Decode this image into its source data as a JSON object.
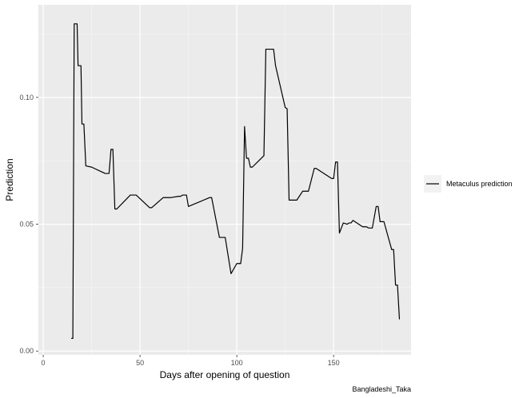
{
  "chart_data": {
    "type": "line",
    "title": "",
    "xlabel": "Days after opening of question",
    "ylabel": "Prediction",
    "caption": "Bangladeshi_Taka",
    "xlim": [
      -2.5,
      190
    ],
    "ylim": [
      -0.0015,
      0.1365
    ],
    "x_ticks": [
      0,
      50,
      100,
      150
    ],
    "x_tick_labels": [
      "0",
      "50",
      "100",
      "150"
    ],
    "y_ticks": [
      0.0,
      0.05,
      0.1
    ],
    "y_tick_labels": [
      "0.00",
      "0.05",
      "0.10"
    ],
    "grid": true,
    "legend_position": "right",
    "series": [
      {
        "name": "Metaculus prediction",
        "color": "#000000",
        "x": [
          14.5,
          15.3,
          16,
          17.5,
          18,
          18.5,
          19.5,
          20,
          21,
          22,
          25,
          32,
          33,
          34,
          35,
          36,
          37,
          38,
          45,
          46,
          47,
          48,
          55,
          56,
          62,
          63,
          65,
          66,
          70,
          71,
          72,
          74,
          75,
          86,
          87,
          91,
          92,
          93,
          94,
          97,
          100,
          101,
          102,
          103,
          104,
          105,
          106,
          107,
          108,
          114,
          115,
          116,
          117,
          118,
          119,
          120,
          125,
          126,
          127,
          130,
          131,
          134,
          135,
          136,
          137,
          140,
          141,
          149,
          150,
          151,
          152,
          153,
          155,
          157,
          158,
          159,
          160,
          165,
          167,
          168,
          170,
          172,
          173,
          174,
          175,
          176,
          180,
          181,
          182,
          183,
          184
        ],
        "y": [
          0.005,
          0.005,
          0.129,
          0.129,
          0.1125,
          0.1125,
          0.1125,
          0.0895,
          0.0895,
          0.073,
          0.0725,
          0.07,
          0.07,
          0.07,
          0.0795,
          0.0795,
          0.056,
          0.056,
          0.0615,
          0.0615,
          0.0615,
          0.0615,
          0.0565,
          0.0565,
          0.0605,
          0.0605,
          0.0605,
          0.0605,
          0.061,
          0.061,
          0.0615,
          0.0615,
          0.057,
          0.0605,
          0.0605,
          0.0448,
          0.0448,
          0.0448,
          0.0448,
          0.0305,
          0.0345,
          0.0345,
          0.0345,
          0.0405,
          0.0885,
          0.076,
          0.076,
          0.0725,
          0.0725,
          0.077,
          0.119,
          0.119,
          0.119,
          0.119,
          0.119,
          0.1125,
          0.096,
          0.0955,
          0.0595,
          0.0595,
          0.0595,
          0.063,
          0.063,
          0.063,
          0.063,
          0.072,
          0.072,
          0.068,
          0.068,
          0.0745,
          0.0745,
          0.0465,
          0.0505,
          0.05,
          0.0505,
          0.0505,
          0.0515,
          0.049,
          0.049,
          0.0485,
          0.0485,
          0.057,
          0.057,
          0.051,
          0.051,
          0.051,
          0.04,
          0.04,
          0.026,
          0.026,
          0.0125
        ]
      }
    ]
  }
}
